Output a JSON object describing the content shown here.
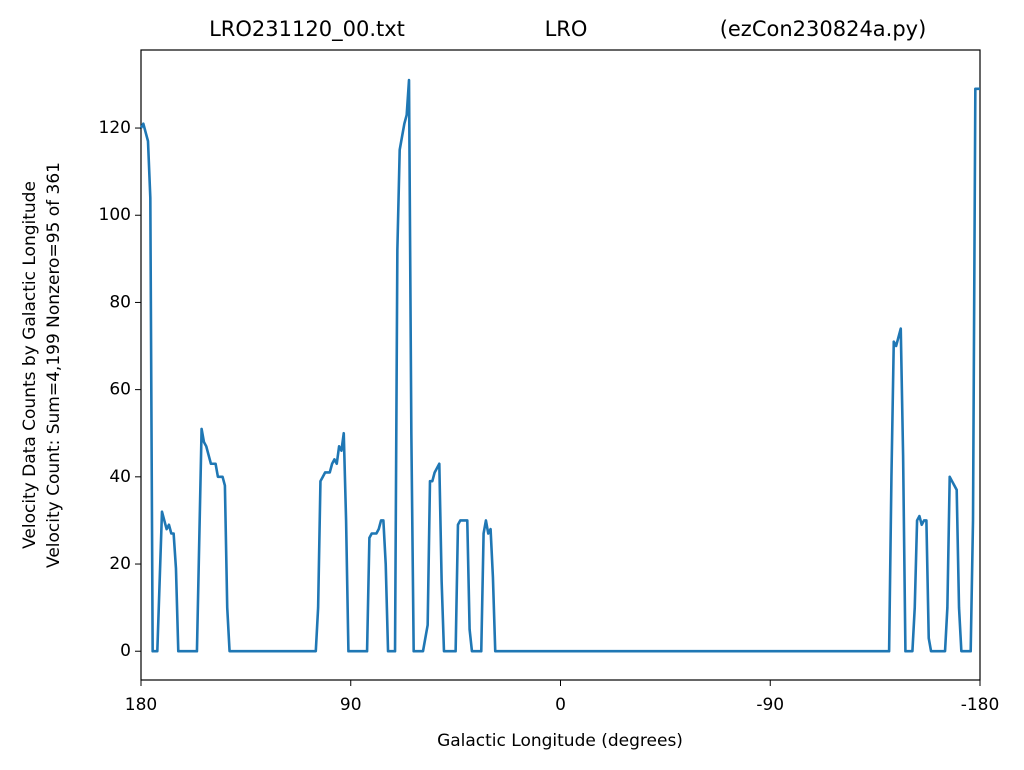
{
  "chart_data": {
    "type": "line",
    "title_parts": [
      "LRO231120_00.txt",
      "LRO",
      "(ezCon230824a.py)"
    ],
    "ylabel_lines": [
      "Velocity Data Counts by Galactic Longitude",
      "Velocity Count: Sum=4,199 Nonzero=95 of 361"
    ],
    "xlabel": "Galactic Longitude (degrees)",
    "xlim": [
      180,
      -180
    ],
    "ylim": [
      -6.6,
      137.9
    ],
    "xticks": [
      180,
      90,
      0,
      -90,
      -180
    ],
    "yticks": [
      0,
      20,
      40,
      60,
      80,
      100,
      120
    ],
    "grid": false,
    "series": [
      {
        "color": "#1f77b4",
        "x": [
          180,
          179,
          178,
          177,
          176,
          175,
          173,
          171,
          170,
          169,
          168,
          167,
          166,
          165,
          164,
          156,
          154,
          153,
          152,
          151,
          150,
          148,
          147,
          145,
          144,
          143,
          142,
          105,
          104,
          103,
          102,
          101,
          99,
          98,
          97,
          96,
          95,
          94,
          93,
          92,
          91,
          83,
          82,
          81,
          79,
          78,
          77,
          76,
          75,
          74,
          71,
          70,
          69,
          68,
          67,
          66,
          65,
          64,
          63,
          59,
          57,
          56,
          55,
          54,
          53,
          52,
          51,
          50,
          45,
          44,
          43,
          40,
          39,
          38,
          34,
          33,
          32,
          31,
          30,
          29,
          28,
          -141,
          -142,
          -143,
          -144,
          -145,
          -146,
          -147,
          -148,
          -151,
          -152,
          -153,
          -154,
          -155,
          -156,
          -157,
          -158,
          -159,
          -165,
          -166,
          -167,
          -168,
          -169,
          -170,
          -171,
          -172,
          -176,
          -177,
          -178,
          -179,
          -180
        ],
        "values": [
          120,
          121,
          119,
          117,
          104,
          0,
          0,
          32,
          30,
          28,
          29,
          27,
          27,
          19,
          0,
          0,
          51,
          48,
          47,
          45,
          43,
          43,
          40,
          40,
          38,
          10,
          0,
          0,
          10,
          39,
          40,
          41,
          41,
          43,
          44,
          43,
          47,
          46,
          50,
          30,
          0,
          0,
          26,
          27,
          27,
          28,
          30,
          30,
          20,
          0,
          0,
          92,
          115,
          118,
          121,
          123,
          131,
          50,
          0,
          0,
          6,
          39,
          39,
          41,
          42,
          43,
          16,
          0,
          0,
          29,
          30,
          30,
          5,
          0,
          0,
          27,
          30,
          27,
          28,
          17,
          0,
          0,
          40,
          71,
          70,
          72,
          74,
          45,
          0,
          0,
          10,
          30,
          31,
          29,
          30,
          30,
          3,
          0,
          0,
          10,
          40,
          39,
          38,
          37,
          10,
          0,
          0,
          30,
          129,
          129,
          129
        ]
      }
    ]
  }
}
